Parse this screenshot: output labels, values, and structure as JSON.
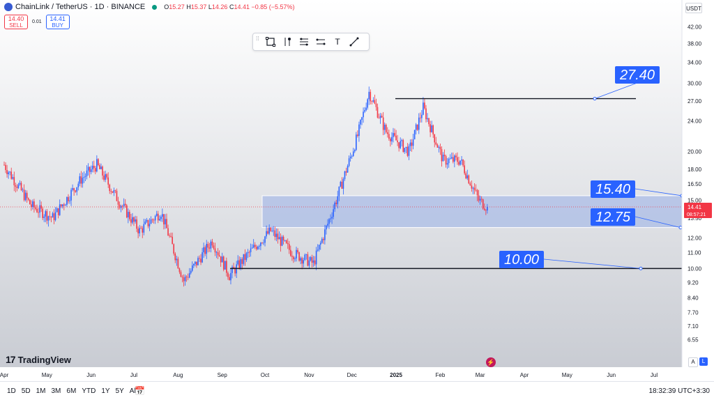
{
  "header": {
    "symbol": "ChainLink / TetherUS · 1D · BINANCE",
    "ohlc": {
      "o_label": "O",
      "o": "15.27",
      "h_label": "H",
      "h": "15.37",
      "l_label": "L",
      "l": "14.26",
      "c_label": "C",
      "c": "14.41",
      "change": "−0.85 (−5.57%)"
    }
  },
  "trade": {
    "sell_price": "14.40",
    "sell_label": "SELL",
    "spread": "0.01",
    "buy_price": "14.41",
    "buy_label": "BUY"
  },
  "currency": "USDT",
  "branding": "TradingView",
  "bottom_bar": {
    "ranges": [
      "1D",
      "5D",
      "1M",
      "3M",
      "6M",
      "YTD",
      "1Y",
      "5Y",
      "All"
    ],
    "clock": "18:32:39 UTC+3:30"
  },
  "scale_buttons": {
    "auto": "A",
    "log": "L"
  },
  "colors": {
    "up": "#2962ff",
    "down": "#f23645",
    "zone_fill": "#b2c1e6",
    "label_bg": "#2962ff"
  },
  "chart_data": {
    "type": "candlestick",
    "y_scale": "log",
    "ylim": [
      6.2,
      44
    ],
    "y_ticks": [
      42.0,
      38.0,
      34.0,
      30.0,
      27.0,
      24.0,
      20.0,
      18.0,
      16.5,
      15.0,
      13.5,
      12.0,
      11.0,
      10.0,
      9.2,
      8.4,
      7.7,
      7.1,
      6.55
    ],
    "x_tick_labels": [
      "Apr",
      "May",
      "Jun",
      "Jul",
      "Aug",
      "Sep",
      "Oct",
      "Nov",
      "Dec",
      "2025",
      "Feb",
      "Mar",
      "Apr",
      "May",
      "Jun",
      "Jul"
    ],
    "last_price": "14.41",
    "countdown": "08:57:21",
    "key_points": [
      {
        "date": "2024-04-01",
        "close": 18.5
      },
      {
        "date": "2024-04-20",
        "close": 14.5
      },
      {
        "date": "2024-05-05",
        "close": 13.5
      },
      {
        "date": "2024-05-25",
        "close": 17.0
      },
      {
        "date": "2024-06-05",
        "close": 18.5
      },
      {
        "date": "2024-06-20",
        "close": 15.0
      },
      {
        "date": "2024-07-05",
        "close": 12.5
      },
      {
        "date": "2024-07-20",
        "close": 14.0
      },
      {
        "date": "2024-08-05",
        "close": 9.3
      },
      {
        "date": "2024-08-25",
        "close": 11.8
      },
      {
        "date": "2024-09-06",
        "close": 9.6
      },
      {
        "date": "2024-09-25",
        "close": 11.5
      },
      {
        "date": "2024-10-05",
        "close": 12.5
      },
      {
        "date": "2024-10-20",
        "close": 11.0
      },
      {
        "date": "2024-11-04",
        "close": 10.3
      },
      {
        "date": "2024-11-20",
        "close": 15.0
      },
      {
        "date": "2024-12-05",
        "close": 22.0
      },
      {
        "date": "2024-12-13",
        "close": 28.5
      },
      {
        "date": "2024-12-25",
        "close": 22.5
      },
      {
        "date": "2025-01-10",
        "close": 20.0
      },
      {
        "date": "2025-01-20",
        "close": 26.0
      },
      {
        "date": "2025-02-03",
        "close": 19.0
      },
      {
        "date": "2025-02-15",
        "close": 19.0
      },
      {
        "date": "2025-02-28",
        "close": 15.0
      },
      {
        "date": "2025-03-06",
        "close": 14.41
      }
    ],
    "annotations": [
      {
        "label": "27.40",
        "level": 27.4
      },
      {
        "label": "15.40",
        "zone": [
          12.75,
          15.4
        ]
      },
      {
        "label": "12.75",
        "level": 12.75
      },
      {
        "label": "10.00",
        "level": 10.0
      }
    ]
  }
}
